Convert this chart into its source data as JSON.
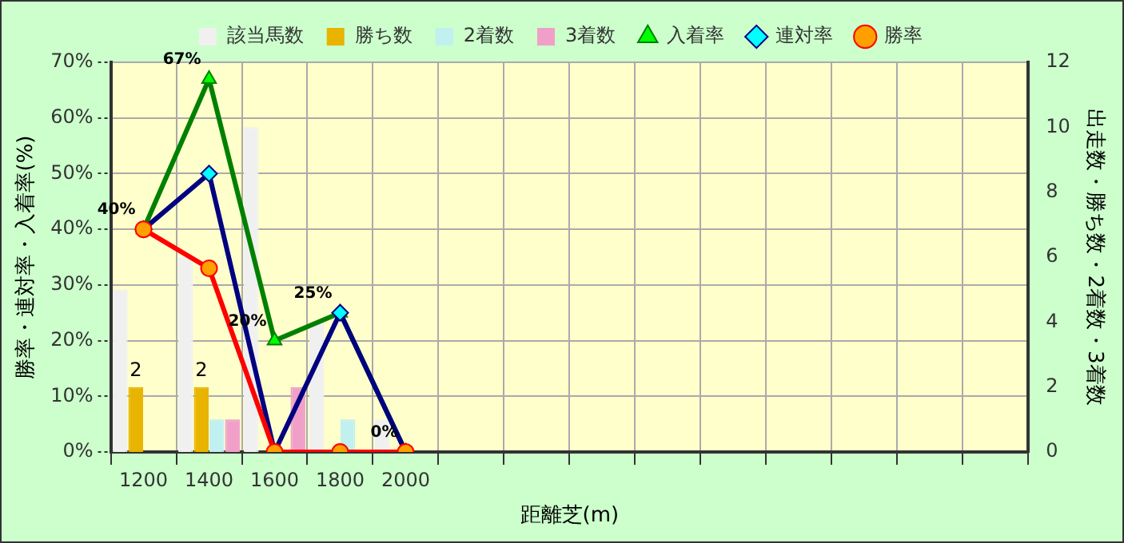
{
  "chart_data": {
    "type": "bar",
    "xlabel": "距離芝(m)",
    "ylabel": "勝率・連対率・入着率(%)",
    "y2label": "出走数・勝ち数・2着数・3着数",
    "categories": [
      "1200",
      "1400",
      "1600",
      "1800",
      "2000",
      null,
      null,
      null,
      null,
      null,
      null,
      null,
      null,
      null
    ],
    "ylim": [
      0,
      70
    ],
    "yticks": [
      {
        "value": 0,
        "label": "0%"
      },
      {
        "value": 10,
        "label": "10%"
      },
      {
        "value": 20,
        "label": "20%"
      },
      {
        "value": 30,
        "label": "30%"
      },
      {
        "value": 40,
        "label": "40%"
      },
      {
        "value": 50,
        "label": "50%"
      },
      {
        "value": 60,
        "label": "60%"
      },
      {
        "value": 70,
        "label": "70%"
      }
    ],
    "y2lim": [
      0,
      12
    ],
    "y2ticks": [
      0,
      2,
      4,
      6,
      8,
      10,
      12
    ],
    "grid": true,
    "legend": "top",
    "series": [
      {
        "name": "該当馬数",
        "axis": "y2",
        "color": "#f0f0f0",
        "values": [
          5,
          6,
          10,
          4,
          1,
          null,
          null,
          null,
          null,
          null,
          null,
          null,
          null,
          null
        ]
      },
      {
        "name": "勝ち数",
        "axis": "y2",
        "color": "#e8b400",
        "values": [
          2,
          2,
          0,
          0,
          0,
          null,
          null,
          null,
          null,
          null,
          null,
          null,
          null,
          null
        ],
        "value_labels": [
          "2",
          "2",
          null,
          null,
          null,
          null,
          null,
          null,
          null,
          null,
          null,
          null,
          null,
          null
        ]
      },
      {
        "name": "2着数",
        "axis": "y2",
        "color": "#c0f0f0",
        "values": [
          0,
          1,
          0,
          1,
          0,
          null,
          null,
          null,
          null,
          null,
          null,
          null,
          null,
          null
        ]
      },
      {
        "name": "3着数",
        "axis": "y2",
        "color": "#f0a0c8",
        "values": [
          0,
          1,
          2,
          0,
          0,
          null,
          null,
          null,
          null,
          null,
          null,
          null,
          null,
          null
        ]
      },
      {
        "name": "入着率",
        "type": "line",
        "marker": "triangle",
        "color": "#008000",
        "values": [
          40,
          67,
          20,
          25,
          0,
          null,
          null,
          null,
          null,
          null,
          null,
          null,
          null,
          null
        ],
        "value_labels": [
          "40%",
          "67%",
          "20%",
          "25%",
          "0%",
          null,
          null,
          null,
          null,
          null,
          null,
          null,
          null,
          null
        ]
      },
      {
        "name": "連対率",
        "type": "line",
        "marker": "diamond",
        "color": "#000080",
        "values": [
          40,
          50,
          0,
          25,
          0,
          null,
          null,
          null,
          null,
          null,
          null,
          null,
          null,
          null
        ]
      },
      {
        "name": "勝率",
        "type": "line",
        "marker": "circle",
        "color": "#ff0000",
        "values": [
          40,
          33,
          0,
          0,
          0,
          null,
          null,
          null,
          null,
          null,
          null,
          null,
          null,
          null
        ]
      }
    ]
  }
}
